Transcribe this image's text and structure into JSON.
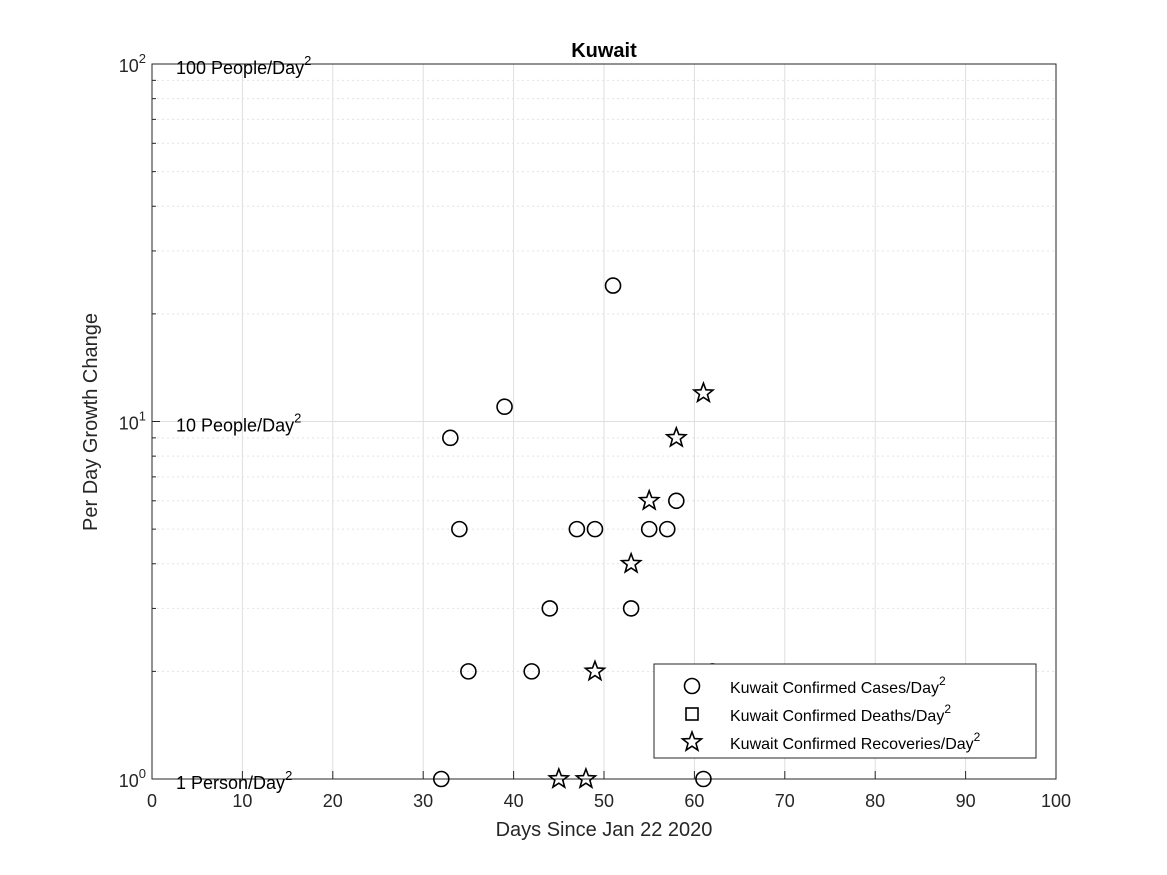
{
  "chart_data": {
    "type": "scatter",
    "title": "Kuwait",
    "xlabel": "Days Since Jan 22 2020",
    "ylabel": "Per Day Growth Change",
    "xlim": [
      0,
      100
    ],
    "ylim": [
      1,
      100
    ],
    "yscale": "log",
    "grid": true,
    "legend_position": "bottom-right",
    "x_ticks": [
      0,
      10,
      20,
      30,
      40,
      50,
      60,
      70,
      80,
      90,
      100
    ],
    "y_ticks": [
      {
        "value": 1,
        "base": "10",
        "exp": "0"
      },
      {
        "value": 10,
        "base": "10",
        "exp": "1"
      },
      {
        "value": 100,
        "base": "10",
        "exp": "2"
      }
    ],
    "annotations": [
      {
        "y": 100,
        "text": "100 People/Day",
        "sup": "2"
      },
      {
        "y": 10,
        "text": "10 People/Day",
        "sup": "2"
      },
      {
        "y": 1,
        "text": "1 Person/Day",
        "sup": "2"
      }
    ],
    "series": [
      {
        "name": "Kuwait Confirmed Cases/Day",
        "name_sup": "2",
        "marker": "circle",
        "points": [
          [
            32,
            1
          ],
          [
            33,
            9
          ],
          [
            34,
            5
          ],
          [
            35,
            2
          ],
          [
            39,
            11
          ],
          [
            42,
            2
          ],
          [
            44,
            3
          ],
          [
            47,
            5
          ],
          [
            49,
            5
          ],
          [
            51,
            24
          ],
          [
            53,
            3
          ],
          [
            55,
            5
          ],
          [
            57,
            5
          ],
          [
            58,
            6
          ],
          [
            61,
            1
          ],
          [
            62,
            2
          ]
        ]
      },
      {
        "name": "Kuwait Confirmed Deaths/Day",
        "name_sup": "2",
        "marker": "square",
        "points": []
      },
      {
        "name": "Kuwait Confirmed Recoveries/Day",
        "name_sup": "2",
        "marker": "star",
        "points": [
          [
            45,
            1
          ],
          [
            48,
            1
          ],
          [
            49,
            2
          ],
          [
            53,
            4
          ],
          [
            55,
            6
          ],
          [
            58,
            9
          ],
          [
            61,
            12
          ]
        ]
      }
    ]
  }
}
